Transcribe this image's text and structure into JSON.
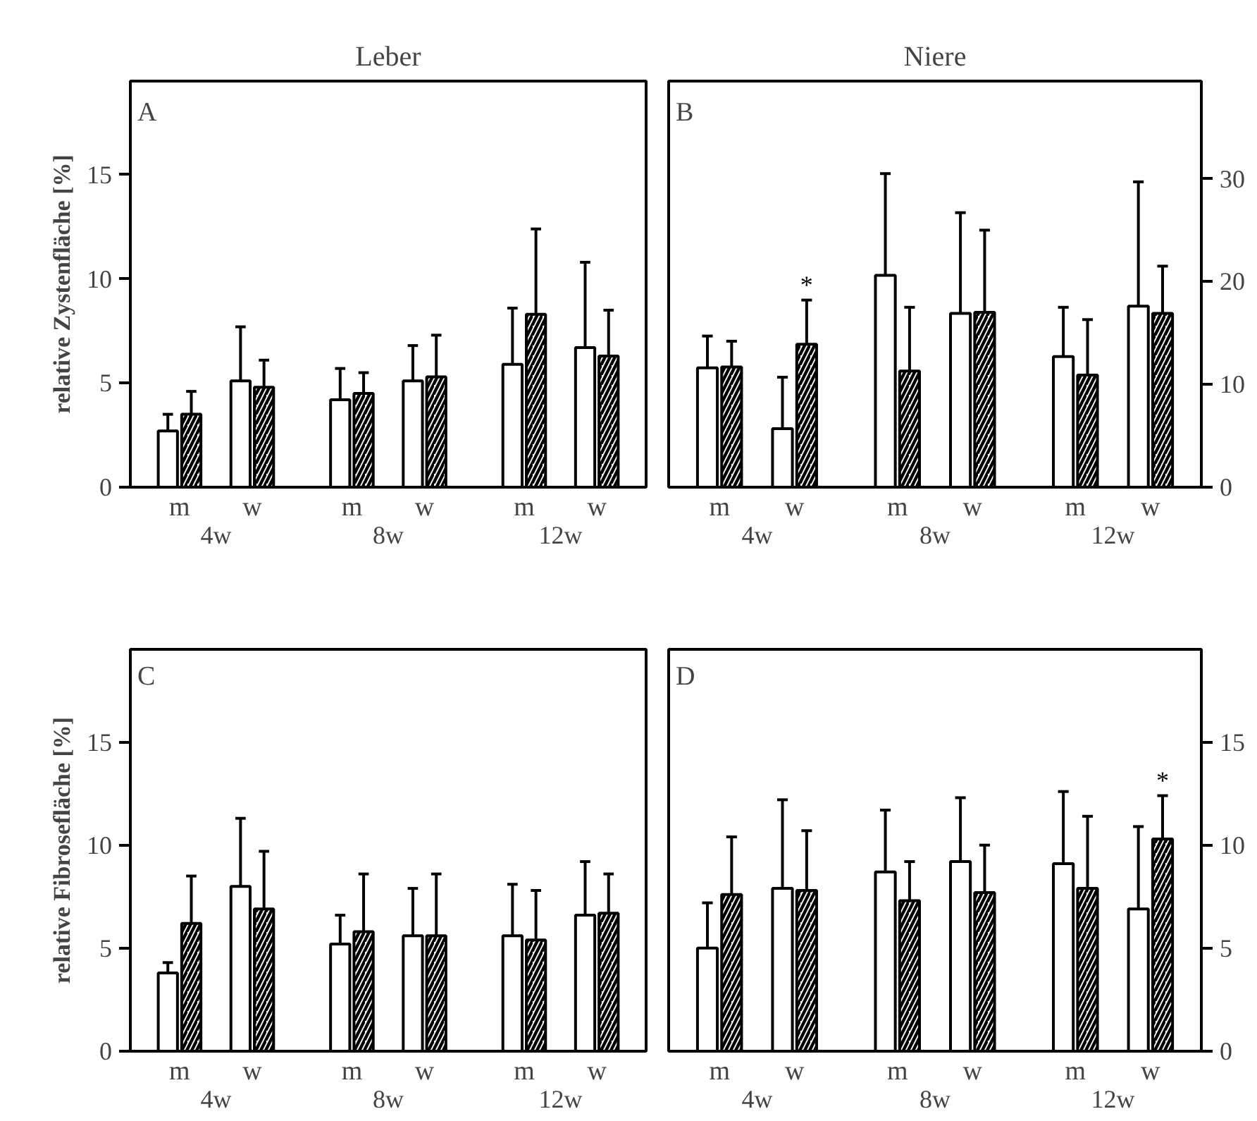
{
  "chart_data": [
    {
      "type": "bar",
      "title": "A",
      "subtitle": "Leber",
      "ylabel": "relative Zystenfläche [%]",
      "categories": [
        "m",
        "w",
        "m",
        "w",
        "m",
        "w"
      ],
      "ylim": [
        0,
        19.5
      ],
      "yticks": [
        0,
        5,
        10,
        15
      ],
      "grid": false,
      "annotations": [
        "4w",
        "8w",
        "12w"
      ],
      "series": [
        {
          "color": "#ffffff",
          "values": [
            2.7,
            5.1,
            4.2,
            5.1,
            5.9,
            6.7
          ],
          "errors": [
            [
              2.7,
              3.5
            ],
            [
              5.1,
              7.7
            ],
            [
              4.2,
              5.7
            ],
            [
              5.1,
              6.8
            ],
            [
              5.9,
              8.6
            ],
            [
              6.7,
              10.8
            ]
          ]
        },
        {
          "color": "#ffffff",
          "values": [
            3.5,
            4.8,
            4.5,
            5.3,
            8.3,
            6.3
          ],
          "errors": [
            [
              3.5,
              4.6
            ],
            [
              4.8,
              6.1
            ],
            [
              4.5,
              5.5
            ],
            [
              5.3,
              7.3
            ],
            [
              8.3,
              12.4
            ],
            [
              6.3,
              8.5
            ]
          ]
        }
      ]
    },
    {
      "type": "bar",
      "title": "B",
      "subtitle": "Niere",
      "categories": [
        "m",
        "w",
        "m",
        "w",
        "m",
        "w"
      ],
      "y2lim": [
        0,
        39.5
      ],
      "y2ticks": [
        0,
        10,
        20,
        30
      ],
      "grid": false,
      "annotations": [
        "4w",
        "8w",
        "12w"
      ],
      "series": [
        {
          "color": "#ffffff",
          "axis": "y2",
          "values": [
            11.6,
            5.7,
            20.6,
            16.9,
            12.7,
            17.6
          ],
          "errors": [
            [
              11.6,
              14.7
            ],
            [
              5.7,
              10.7
            ],
            [
              20.6,
              30.5
            ],
            [
              16.9,
              26.7
            ],
            [
              12.7,
              17.5
            ],
            [
              17.6,
              29.7
            ]
          ]
        },
        {
          "color": "#ffffff",
          "axis": "y2",
          "value_labels": [
            null,
            "*",
            null,
            null,
            null,
            null
          ],
          "values": [
            11.7,
            13.9,
            11.3,
            17.0,
            10.9,
            16.9
          ],
          "errors": [
            [
              11.7,
              14.2
            ],
            [
              13.9,
              18.2
            ],
            [
              11.3,
              17.5
            ],
            [
              17.0,
              25.0
            ],
            [
              10.9,
              16.3
            ],
            [
              16.9,
              21.5
            ]
          ]
        }
      ]
    },
    {
      "type": "bar",
      "title": "C",
      "ylabel": "relative Fibrosefläche [%]",
      "categories": [
        "m",
        "w",
        "m",
        "w",
        "m",
        "w"
      ],
      "ylim": [
        0,
        19.5
      ],
      "yticks": [
        0,
        5,
        10,
        15
      ],
      "grid": false,
      "annotations": [
        "4w",
        "8w",
        "12w"
      ],
      "series": [
        {
          "color": "#ffffff",
          "values": [
            3.8,
            8.0,
            5.2,
            5.6,
            5.6,
            6.6
          ],
          "errors": [
            [
              3.8,
              4.3
            ],
            [
              8.0,
              11.3
            ],
            [
              5.2,
              6.6
            ],
            [
              5.6,
              7.9
            ],
            [
              5.6,
              8.1
            ],
            [
              6.6,
              9.2
            ]
          ]
        },
        {
          "color": "#ffffff",
          "values": [
            6.2,
            6.9,
            5.8,
            5.6,
            5.4,
            6.7
          ],
          "errors": [
            [
              6.2,
              8.5
            ],
            [
              6.9,
              9.7
            ],
            [
              5.8,
              8.6
            ],
            [
              5.6,
              8.6
            ],
            [
              5.4,
              7.8
            ],
            [
              6.7,
              8.6
            ]
          ]
        }
      ]
    },
    {
      "type": "bar",
      "title": "D",
      "categories": [
        "m",
        "w",
        "m",
        "w",
        "m",
        "w"
      ],
      "y2lim": [
        0,
        19.5
      ],
      "y2ticks": [
        0,
        5,
        10,
        15
      ],
      "grid": false,
      "annotations": [
        "4w",
        "8w",
        "12w"
      ],
      "series": [
        {
          "color": "#ffffff",
          "axis": "y2",
          "values": [
            5.0,
            7.9,
            8.7,
            9.2,
            9.1,
            6.9
          ],
          "errors": [
            [
              5.0,
              7.2
            ],
            [
              7.9,
              12.2
            ],
            [
              8.7,
              11.7
            ],
            [
              9.2,
              12.3
            ],
            [
              9.1,
              12.6
            ],
            [
              6.9,
              10.9
            ]
          ]
        },
        {
          "color": "#ffffff",
          "axis": "y2",
          "value_labels": [
            null,
            null,
            null,
            null,
            null,
            "*"
          ],
          "values": [
            7.6,
            7.8,
            7.3,
            7.7,
            7.9,
            10.3
          ],
          "errors": [
            [
              7.6,
              10.4
            ],
            [
              7.8,
              10.7
            ],
            [
              7.3,
              9.2
            ],
            [
              7.7,
              10.0
            ],
            [
              7.9,
              11.4
            ],
            [
              10.3,
              12.4
            ]
          ]
        }
      ]
    }
  ]
}
